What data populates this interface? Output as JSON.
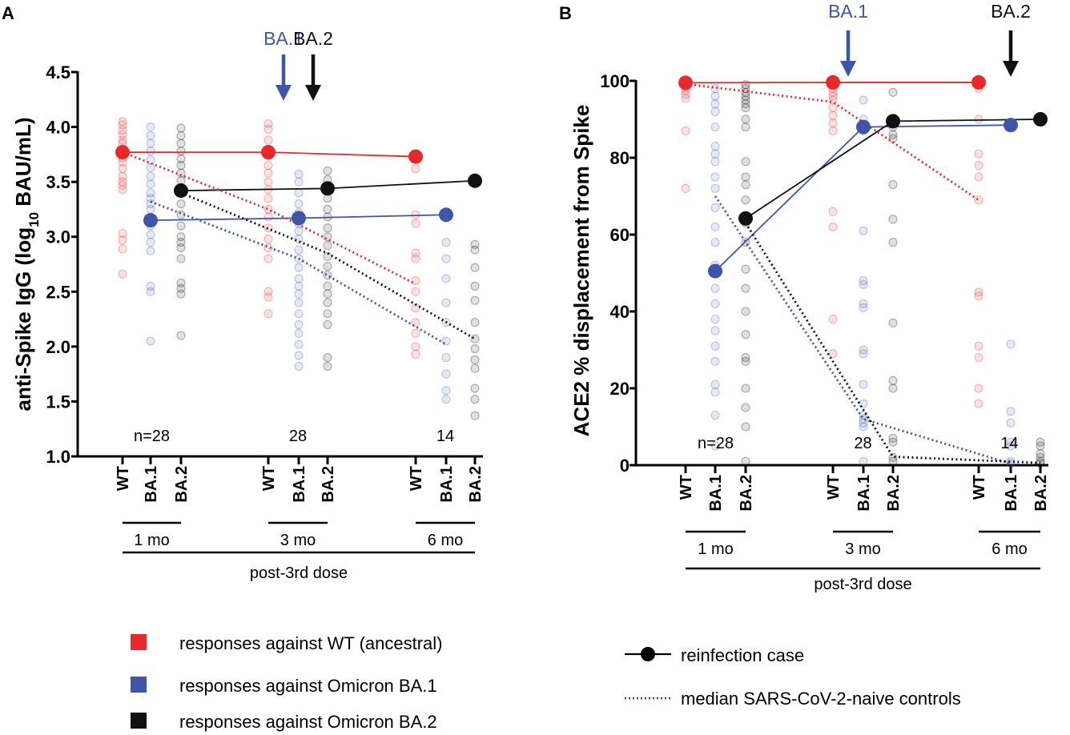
{
  "colors": {
    "WT": "#e8282a",
    "BA.1": "#3f55a8",
    "BA.2": "#111111"
  },
  "legend": {
    "items": [
      {
        "label": "responses against WT (ancestral)",
        "color": "#e8282a"
      },
      {
        "label": "responses against Omicron BA.1",
        "color": "#3f55a8"
      },
      {
        "label": "responses against Omicron BA.2",
        "color": "#111111"
      }
    ],
    "reinfection_label": "reinfection case",
    "controls_label": "median SARS-CoV-2-naive controls"
  },
  "chart_data": [
    {
      "type": "scatter",
      "panel": "A",
      "ylabel_main": "anti-Spike IgG (log",
      "ylabel_sub": "10",
      "ylabel_tail": " BAU/mL)",
      "ylim": [
        1.0,
        4.5
      ],
      "yticks": [
        "1.0",
        "1.5",
        "2.0",
        "2.5",
        "3.0",
        "3.5",
        "4.0",
        "4.5"
      ],
      "categories": [
        "WT",
        "BA.1",
        "BA.2",
        "WT",
        "BA.1",
        "BA.2",
        "WT",
        "BA.1",
        "BA.2"
      ],
      "timepoints": [
        "1 mo",
        "3 mo",
        "6 mo"
      ],
      "group_label": "post-3rd dose",
      "n_labels": [
        "n=28",
        "28",
        "14"
      ],
      "variant_arrows": [
        {
          "label": "BA.1",
          "position": 3.5,
          "color": "#3f55a8"
        },
        {
          "label": "BA.2",
          "position": 4.5,
          "color": "#111111"
        }
      ],
      "series": [
        {
          "name": "WT reinfection case",
          "type": "solid",
          "color": "#e8282a",
          "x": [
            0,
            3,
            6
          ],
          "values": [
            3.77,
            3.77,
            3.73
          ]
        },
        {
          "name": "BA.1 reinfection case",
          "type": "solid",
          "color": "#3f55a8",
          "x": [
            1,
            4,
            7
          ],
          "values": [
            3.15,
            3.17,
            3.2
          ]
        },
        {
          "name": "BA.2 reinfection case",
          "type": "solid",
          "color": "#111111",
          "x": [
            2,
            5,
            8
          ],
          "values": [
            3.42,
            3.44,
            3.51
          ]
        },
        {
          "name": "WT median controls",
          "type": "dotted",
          "color": "#e8282a",
          "x": [
            0,
            3,
            6
          ],
          "values": [
            3.77,
            3.25,
            2.57
          ]
        },
        {
          "name": "BA.1 median controls",
          "type": "dotted",
          "color": "#3f55a8",
          "x": [
            1,
            4,
            7
          ],
          "values": [
            3.32,
            2.8,
            2.02
          ]
        },
        {
          "name": "BA.2 median controls",
          "type": "dotted",
          "color": "#111111",
          "x": [
            2,
            5,
            8
          ],
          "values": [
            3.4,
            2.85,
            2.07
          ]
        }
      ],
      "individual_points": [
        {
          "x": 0,
          "color": "#e8282a",
          "values": [
            4.05,
            4.02,
            3.97,
            3.93,
            3.88,
            3.85,
            3.8,
            3.77,
            3.72,
            3.68,
            3.62,
            3.55,
            3.5,
            3.47,
            3.43,
            3.03,
            2.97,
            2.89,
            2.66
          ]
        },
        {
          "x": 1,
          "color": "#3f55a8",
          "values": [
            4.0,
            3.92,
            3.85,
            3.78,
            3.7,
            3.63,
            3.55,
            3.48,
            3.4,
            3.35,
            3.3,
            3.25,
            3.17,
            3.1,
            3.02,
            2.95,
            2.87,
            2.55,
            2.5,
            2.05
          ]
        },
        {
          "x": 2,
          "color": "#111111",
          "values": [
            3.99,
            3.92,
            3.85,
            3.78,
            3.71,
            3.65,
            3.58,
            3.51,
            3.45,
            3.3,
            3.2,
            3.1,
            3.0,
            2.95,
            2.9,
            2.8,
            2.58,
            2.53,
            2.48,
            2.1
          ]
        },
        {
          "x": 3,
          "color": "#e8282a",
          "values": [
            4.03,
            3.98,
            3.88,
            3.8,
            3.74,
            3.65,
            3.58,
            3.5,
            3.43,
            3.35,
            3.25,
            3.18,
            3.08,
            2.98,
            2.9,
            2.8,
            2.5,
            2.45,
            2.3
          ]
        },
        {
          "x": 4,
          "color": "#3f55a8",
          "values": [
            3.57,
            3.5,
            3.4,
            3.3,
            3.22,
            3.12,
            3.05,
            2.98,
            2.88,
            2.8,
            2.72,
            2.62,
            2.55,
            2.48,
            2.4,
            2.3,
            2.2,
            2.12,
            2.02,
            1.92,
            1.82
          ]
        },
        {
          "x": 5,
          "color": "#111111",
          "values": [
            3.6,
            3.52,
            3.45,
            3.35,
            3.25,
            3.18,
            3.08,
            3.0,
            2.92,
            2.82,
            2.73,
            2.65,
            2.55,
            2.48,
            2.4,
            2.3,
            2.2,
            1.9,
            1.82
          ]
        },
        {
          "x": 6,
          "color": "#e8282a",
          "values": [
            3.62,
            3.2,
            3.12,
            2.85,
            2.8,
            2.6,
            2.5,
            2.35,
            2.22,
            2.12,
            2.0,
            1.93
          ]
        },
        {
          "x": 7,
          "color": "#3f55a8",
          "values": [
            2.95,
            2.8,
            2.62,
            2.4,
            2.22,
            2.05,
            1.9,
            1.75,
            1.6,
            1.52
          ]
        },
        {
          "x": 8,
          "color": "#111111",
          "values": [
            2.93,
            2.88,
            2.72,
            2.55,
            2.42,
            2.22,
            2.07,
            1.98,
            1.88,
            1.8,
            1.62,
            1.52,
            1.37
          ]
        }
      ]
    },
    {
      "type": "scatter",
      "panel": "B",
      "ylabel_main": "ACE2 % displacement from Spike",
      "ylim": [
        0,
        100
      ],
      "yticks": [
        "0",
        "20",
        "40",
        "60",
        "80",
        "100"
      ],
      "categories": [
        "WT",
        "BA.1",
        "BA.2",
        "WT",
        "BA.1",
        "BA.2",
        "WT",
        "BA.1",
        "BA.2"
      ],
      "timepoints": [
        "1 mo",
        "3 mo",
        "6 mo"
      ],
      "group_label": "post-3rd dose",
      "n_labels": [
        "n=28",
        "28",
        "14"
      ],
      "variant_arrows": [
        {
          "label": "BA.1",
          "position": 3.5,
          "color": "#3f55a8"
        },
        {
          "label": "BA.2",
          "position": 7.0,
          "color": "#111111"
        }
      ],
      "series": [
        {
          "name": "WT reinfection case",
          "type": "solid",
          "color": "#e8282a",
          "x": [
            0,
            3,
            6
          ],
          "values": [
            99.5,
            99.6,
            99.6
          ]
        },
        {
          "name": "BA.1 reinfection case",
          "type": "solid",
          "color": "#3f55a8",
          "x": [
            1,
            4,
            7
          ],
          "values": [
            50.5,
            88,
            88.5
          ]
        },
        {
          "name": "BA.2 reinfection case",
          "type": "solid",
          "color": "#111111",
          "x": [
            2,
            5,
            8
          ],
          "values": [
            64.2,
            89.5,
            90
          ]
        },
        {
          "name": "WT median controls",
          "type": "dotted",
          "color": "#e8282a",
          "x": [
            0,
            3,
            6
          ],
          "values": [
            99.2,
            94.5,
            69
          ]
        },
        {
          "name": "BA.1 median controls",
          "type": "dotted",
          "color": "#3f55a8",
          "x": [
            1,
            4,
            7
          ],
          "values": [
            70,
            12,
            0.4
          ]
        },
        {
          "name": "BA.2 median controls",
          "type": "dotted",
          "color": "#111111",
          "x": [
            2,
            5,
            8
          ],
          "values": [
            63,
            2.2,
            0.6
          ]
        }
      ],
      "individual_points": [
        {
          "x": 0,
          "color": "#e8282a",
          "values": [
            99.8,
            99.5,
            99.2,
            98.8,
            98.3,
            97.5,
            96.5,
            95.5,
            87,
            72
          ]
        },
        {
          "x": 1,
          "color": "#3f55a8",
          "values": [
            98,
            96,
            94,
            92,
            88,
            83,
            81,
            79,
            75,
            72,
            67,
            62,
            58,
            52,
            46,
            42,
            38,
            35,
            31,
            27,
            21,
            19,
            13,
            5
          ]
        },
        {
          "x": 2,
          "color": "#111111",
          "values": [
            99,
            98,
            97,
            96,
            95,
            94,
            93,
            90,
            88,
            79,
            75,
            73,
            69,
            63,
            58,
            51,
            46,
            40,
            34,
            28,
            27,
            20,
            15,
            10,
            1
          ]
        },
        {
          "x": 3,
          "color": "#e8282a",
          "values": [
            99.5,
            99,
            98,
            97,
            96,
            95,
            93,
            91,
            89,
            87,
            66,
            62,
            38,
            29
          ]
        },
        {
          "x": 4,
          "color": "#3f55a8",
          "values": [
            95,
            90,
            88,
            87,
            61,
            48,
            47,
            42,
            41,
            30,
            29,
            21,
            16,
            13,
            12,
            11,
            10,
            1
          ]
        },
        {
          "x": 5,
          "color": "#111111",
          "values": [
            97,
            88,
            86,
            85,
            73,
            64,
            58,
            37,
            22,
            20,
            7,
            6,
            2,
            1
          ]
        },
        {
          "x": 6,
          "color": "#e8282a",
          "values": [
            99,
            98,
            90,
            81,
            78,
            75,
            69,
            45,
            44,
            31,
            28,
            20,
            16
          ]
        },
        {
          "x": 7,
          "color": "#3f55a8",
          "values": [
            31.5,
            14,
            11,
            6,
            5,
            1,
            0.5
          ]
        },
        {
          "x": 8,
          "color": "#111111",
          "values": [
            6,
            5,
            3,
            2,
            1,
            0.5
          ]
        }
      ]
    }
  ]
}
